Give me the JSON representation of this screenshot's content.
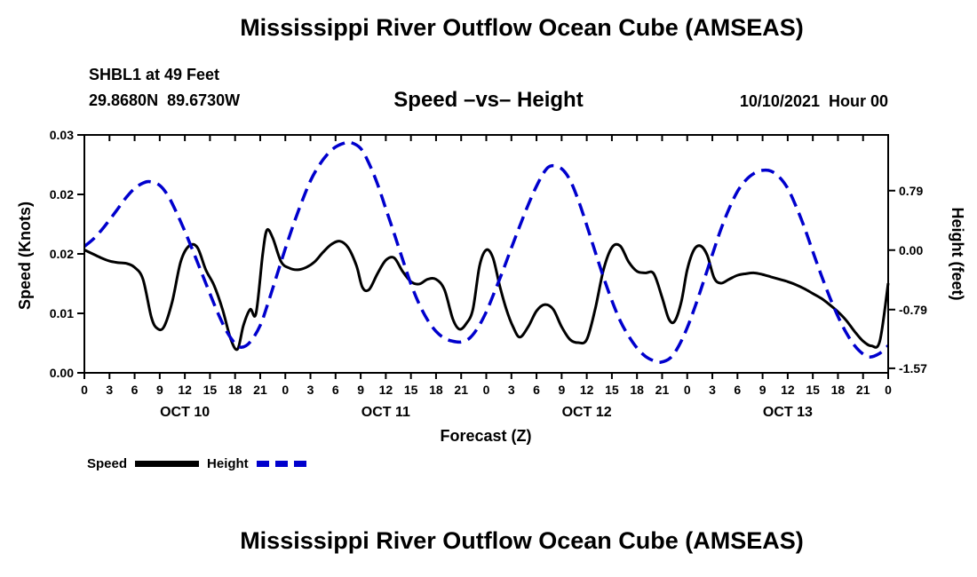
{
  "page": {
    "top_title": "Mississippi River Outflow Ocean Cube (AMSEAS)",
    "bottom_title": "Mississippi River Outflow Ocean Cube (AMSEAS)"
  },
  "header": {
    "station_name": "SHBL1 at 49 Feet",
    "station_coords": "29.8680N  89.6730W",
    "chart_title": "Speed –vs– Height",
    "datetime": "10/10/2021  Hour 00"
  },
  "legend": {
    "speed_label": "Speed",
    "height_label": "Height"
  },
  "colors": {
    "speed": "#000000",
    "height": "#0000cd"
  },
  "chart_data": {
    "type": "line",
    "title": "Speed –vs– Height",
    "xlabel": "Forecast (Z)",
    "ylabel_left": "Speed (Knots)",
    "ylabel_right": "Height (feet)",
    "x_range": [
      0,
      96
    ],
    "x_tick_interval": 3,
    "x_tick_labels": [
      "0",
      "3",
      "6",
      "9",
      "12",
      "15",
      "18",
      "21",
      "0",
      "3",
      "6",
      "9",
      "12",
      "15",
      "18",
      "21",
      "0",
      "3",
      "6",
      "9",
      "12",
      "15",
      "18",
      "21",
      "0",
      "3",
      "6",
      "9",
      "12",
      "15",
      "18",
      "21",
      "0"
    ],
    "day_labels": [
      {
        "label": "OCT 10",
        "hour": 12
      },
      {
        "label": "OCT 11",
        "hour": 36
      },
      {
        "label": "OCT 12",
        "hour": 60
      },
      {
        "label": "OCT 13",
        "hour": 84
      }
    ],
    "left_axis": {
      "lim": [
        0,
        0.03
      ],
      "ticks": [
        0,
        0.0075,
        0.015,
        0.0225,
        0.03
      ],
      "labels": [
        "0.00",
        "0.01",
        "0.02",
        "0.02",
        "0.03"
      ]
    },
    "right_axis": {
      "lim": [
        -1.63,
        1.53
      ],
      "ticks": [
        0.79,
        0,
        -0.79,
        -1.57
      ],
      "labels": [
        "0.79",
        "0.00",
        "-0.79",
        "-1.57"
      ]
    },
    "grid": false,
    "legend_position": "bottom-left",
    "series": [
      {
        "name": "Speed",
        "axis": "left",
        "color_key": "speed",
        "width": 3,
        "dash": null,
        "points": [
          [
            0,
            0.0155
          ],
          [
            1,
            0.015
          ],
          [
            2,
            0.0145
          ],
          [
            3,
            0.0141
          ],
          [
            4,
            0.0139
          ],
          [
            5,
            0.0138
          ],
          [
            6,
            0.0133
          ],
          [
            7,
            0.0118
          ],
          [
            8,
            0.007
          ],
          [
            8.7,
            0.0056
          ],
          [
            9.5,
            0.0058
          ],
          [
            10.5,
            0.009
          ],
          [
            11.5,
            0.014
          ],
          [
            12.5,
            0.016
          ],
          [
            13.5,
            0.0158
          ],
          [
            14.5,
            0.013
          ],
          [
            15.5,
            0.011
          ],
          [
            16.5,
            0.008
          ],
          [
            17.5,
            0.0042
          ],
          [
            18.3,
            0.003
          ],
          [
            19,
            0.006
          ],
          [
            19.8,
            0.008
          ],
          [
            20.5,
            0.0075
          ],
          [
            21.3,
            0.015
          ],
          [
            21.8,
            0.018
          ],
          [
            22.5,
            0.017
          ],
          [
            23.5,
            0.014
          ],
          [
            24.5,
            0.0132
          ],
          [
            25.5,
            0.013
          ],
          [
            26.5,
            0.0133
          ],
          [
            27.5,
            0.014
          ],
          [
            28.5,
            0.0152
          ],
          [
            29.5,
            0.0162
          ],
          [
            30.5,
            0.0166
          ],
          [
            31.5,
            0.0158
          ],
          [
            32.5,
            0.0135
          ],
          [
            33.2,
            0.0108
          ],
          [
            34,
            0.0105
          ],
          [
            35,
            0.0125
          ],
          [
            36,
            0.0142
          ],
          [
            37,
            0.0145
          ],
          [
            38,
            0.0128
          ],
          [
            39,
            0.0115
          ],
          [
            40,
            0.0112
          ],
          [
            41,
            0.0118
          ],
          [
            42,
            0.0118
          ],
          [
            43,
            0.0105
          ],
          [
            44,
            0.0068
          ],
          [
            44.8,
            0.0055
          ],
          [
            45.6,
            0.0062
          ],
          [
            46.4,
            0.008
          ],
          [
            47.2,
            0.0135
          ],
          [
            48,
            0.0155
          ],
          [
            48.8,
            0.0145
          ],
          [
            49.6,
            0.011
          ],
          [
            50.4,
            0.008
          ],
          [
            51.2,
            0.0058
          ],
          [
            52,
            0.0045
          ],
          [
            53,
            0.0058
          ],
          [
            54,
            0.0078
          ],
          [
            55,
            0.0086
          ],
          [
            56,
            0.008
          ],
          [
            57,
            0.0058
          ],
          [
            58,
            0.0042
          ],
          [
            59,
            0.0038
          ],
          [
            60,
            0.0042
          ],
          [
            61,
            0.008
          ],
          [
            62,
            0.013
          ],
          [
            63,
            0.0158
          ],
          [
            64,
            0.016
          ],
          [
            65,
            0.014
          ],
          [
            66,
            0.0128
          ],
          [
            67,
            0.0126
          ],
          [
            68,
            0.0125
          ],
          [
            69,
            0.0095
          ],
          [
            69.8,
            0.0068
          ],
          [
            70.5,
            0.0065
          ],
          [
            71.3,
            0.009
          ],
          [
            72,
            0.013
          ],
          [
            72.8,
            0.0155
          ],
          [
            73.6,
            0.016
          ],
          [
            74.4,
            0.0148
          ],
          [
            75.2,
            0.012
          ],
          [
            76,
            0.0113
          ],
          [
            77,
            0.0118
          ],
          [
            78,
            0.0123
          ],
          [
            79,
            0.0125
          ],
          [
            80,
            0.0126
          ],
          [
            81,
            0.0124
          ],
          [
            82,
            0.0121
          ],
          [
            83,
            0.0118
          ],
          [
            84,
            0.0115
          ],
          [
            85,
            0.0111
          ],
          [
            86,
            0.0106
          ],
          [
            87,
            0.01
          ],
          [
            88,
            0.0094
          ],
          [
            89,
            0.0086
          ],
          [
            90,
            0.0077
          ],
          [
            91,
            0.0066
          ],
          [
            92,
            0.0052
          ],
          [
            93,
            0.004
          ],
          [
            94,
            0.0034
          ],
          [
            95,
            0.004
          ],
          [
            96,
            0.0113
          ]
        ]
      },
      {
        "name": "Height",
        "axis": "right",
        "color_key": "height",
        "width": 3.5,
        "dash": "15 8",
        "points": [
          [
            0,
            0.05
          ],
          [
            1,
            0.14
          ],
          [
            2,
            0.26
          ],
          [
            3,
            0.4
          ],
          [
            4,
            0.55
          ],
          [
            5,
            0.7
          ],
          [
            6,
            0.82
          ],
          [
            7,
            0.89
          ],
          [
            7.8,
            0.91
          ],
          [
            9,
            0.86
          ],
          [
            10,
            0.72
          ],
          [
            11,
            0.5
          ],
          [
            12,
            0.25
          ],
          [
            13,
            -0.02
          ],
          [
            14,
            -0.3
          ],
          [
            15,
            -0.58
          ],
          [
            16,
            -0.85
          ],
          [
            17,
            -1.08
          ],
          [
            18,
            -1.24
          ],
          [
            18.8,
            -1.29
          ],
          [
            19.8,
            -1.22
          ],
          [
            21,
            -1
          ],
          [
            22,
            -0.68
          ],
          [
            23,
            -0.33
          ],
          [
            24,
            0.02
          ],
          [
            25,
            0.35
          ],
          [
            26,
            0.65
          ],
          [
            27,
            0.92
          ],
          [
            28,
            1.12
          ],
          [
            29,
            1.27
          ],
          [
            30,
            1.37
          ],
          [
            31,
            1.42
          ],
          [
            31.8,
            1.43
          ],
          [
            33,
            1.35
          ],
          [
            34,
            1.15
          ],
          [
            35,
            0.88
          ],
          [
            36,
            0.55
          ],
          [
            37,
            0.22
          ],
          [
            38,
            -0.12
          ],
          [
            39,
            -0.45
          ],
          [
            40,
            -0.72
          ],
          [
            41,
            -0.93
          ],
          [
            42,
            -1.08
          ],
          [
            43,
            -1.17
          ],
          [
            44,
            -1.21
          ],
          [
            45,
            -1.22
          ],
          [
            46,
            -1.17
          ],
          [
            47,
            -1.03
          ],
          [
            48,
            -0.82
          ],
          [
            49,
            -0.55
          ],
          [
            50,
            -0.27
          ],
          [
            51,
            0.03
          ],
          [
            52,
            0.32
          ],
          [
            53,
            0.6
          ],
          [
            54,
            0.85
          ],
          [
            55,
            1.05
          ],
          [
            55.8,
            1.12
          ],
          [
            57,
            1.08
          ],
          [
            58,
            0.93
          ],
          [
            59,
            0.66
          ],
          [
            60,
            0.33
          ],
          [
            61,
            -0.02
          ],
          [
            62,
            -0.36
          ],
          [
            63,
            -0.67
          ],
          [
            64,
            -0.94
          ],
          [
            65,
            -1.14
          ],
          [
            66,
            -1.3
          ],
          [
            67,
            -1.41
          ],
          [
            68,
            -1.47
          ],
          [
            68.8,
            -1.49
          ],
          [
            70,
            -1.43
          ],
          [
            71,
            -1.27
          ],
          [
            72,
            -1.03
          ],
          [
            73,
            -0.73
          ],
          [
            74,
            -0.4
          ],
          [
            75,
            -0.06
          ],
          [
            76,
            0.27
          ],
          [
            77,
            0.55
          ],
          [
            78,
            0.78
          ],
          [
            79,
            0.93
          ],
          [
            80,
            1.02
          ],
          [
            81,
            1.06
          ],
          [
            82,
            1.05
          ],
          [
            83,
            0.97
          ],
          [
            84,
            0.82
          ],
          [
            85,
            0.58
          ],
          [
            86,
            0.3
          ],
          [
            87,
            -0.02
          ],
          [
            88,
            -0.33
          ],
          [
            89,
            -0.62
          ],
          [
            90,
            -0.88
          ],
          [
            91,
            -1.1
          ],
          [
            92,
            -1.27
          ],
          [
            93,
            -1.38
          ],
          [
            93.8,
            -1.42
          ],
          [
            95,
            -1.37
          ],
          [
            96,
            -1.27
          ]
        ]
      }
    ]
  }
}
